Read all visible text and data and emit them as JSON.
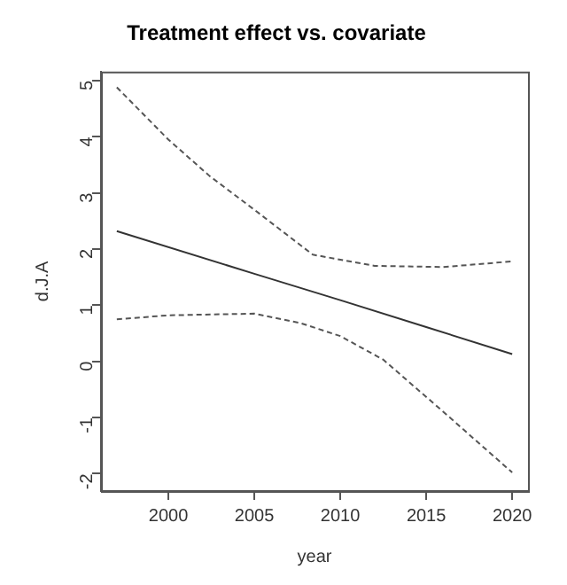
{
  "chart_data": {
    "type": "line",
    "title": "Treatment effect vs. covariate",
    "xlabel": "year",
    "ylabel": "d.J.A",
    "xlim": [
      1996.08,
      2020.92
    ],
    "xticks": [
      2000,
      2005,
      2010,
      2015,
      2020
    ],
    "ylim": [
      -2.31,
      5.16
    ],
    "yticks": [
      -2,
      -1,
      0,
      1,
      2,
      3,
      4,
      5
    ],
    "grid": false,
    "legend": false,
    "marker": "none",
    "series": [
      {
        "color": "#333333",
        "line_style": "solid",
        "x": [
          1997,
          2005,
          2010,
          2015,
          2020
        ],
        "values": [
          2.32,
          1.56,
          1.09,
          0.61,
          0.13
        ]
      },
      {
        "color": "#555555",
        "line_style": "dashed",
        "x": [
          1997,
          2000,
          2002.4,
          2005,
          2008.4,
          2012,
          2016,
          2020
        ],
        "values": [
          4.88,
          3.95,
          3.3,
          2.7,
          1.9,
          1.7,
          1.68,
          1.78
        ]
      },
      {
        "color": "#555555",
        "line_style": "dashed",
        "x": [
          1997,
          2000,
          2005,
          2007.7,
          2010,
          2012.5,
          2016,
          2020
        ],
        "values": [
          0.75,
          0.82,
          0.85,
          0.68,
          0.45,
          0.03,
          -0.9,
          -1.98
        ]
      }
    ]
  }
}
